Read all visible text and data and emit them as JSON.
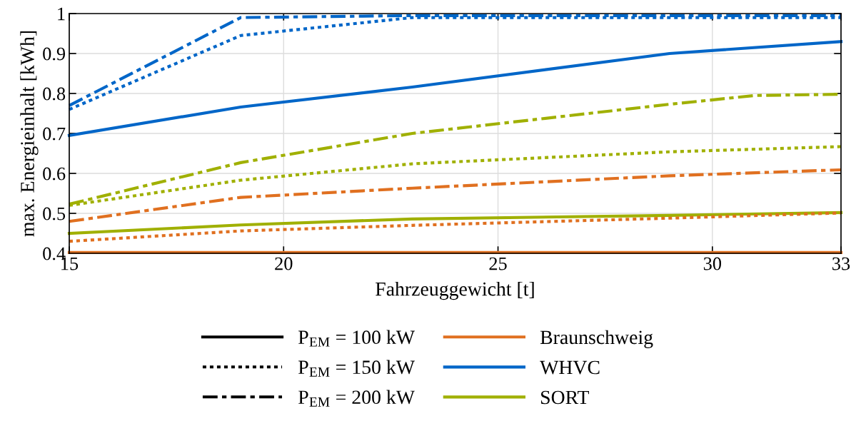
{
  "chart_data": {
    "type": "line",
    "xlabel": "Fahrzeuggewicht [t]",
    "ylabel": "max. Energieinhalt [kWh]",
    "xlim": [
      15,
      33
    ],
    "xticks": [
      15,
      20,
      25,
      30,
      33
    ],
    "ylim": [
      0.4,
      1
    ],
    "yticks": [
      0.4,
      0.5,
      0.6,
      0.7,
      0.8,
      0.9,
      1
    ],
    "grid": true,
    "legend": "bottom",
    "series": [
      {
        "color": "#0066c8",
        "line_style": "solid",
        "x": [
          15,
          19,
          23,
          29,
          33
        ],
        "values": [
          0.695,
          0.766,
          0.816,
          0.9,
          0.93
        ]
      },
      {
        "color": "#0066c8",
        "line_style": "dotted",
        "x": [
          15,
          19,
          23,
          29,
          33
        ],
        "values": [
          0.76,
          0.945,
          0.99,
          0.99,
          0.99
        ]
      },
      {
        "color": "#0066c8",
        "line_style": "dashed",
        "x": [
          15,
          19,
          23,
          29,
          33
        ],
        "values": [
          0.77,
          0.99,
          0.995,
          0.995,
          0.995
        ]
      },
      {
        "color": "#a0b000",
        "line_style": "dashed",
        "x": [
          15,
          19,
          23,
          29,
          31,
          33
        ],
        "values": [
          0.523,
          0.627,
          0.7,
          0.773,
          0.795,
          0.798
        ]
      },
      {
        "color": "#a0b000",
        "line_style": "dotted",
        "x": [
          15,
          19,
          23,
          29,
          33
        ],
        "values": [
          0.52,
          0.583,
          0.624,
          0.654,
          0.667
        ]
      },
      {
        "color": "#e07020",
        "line_style": "dashed",
        "x": [
          15,
          19,
          23,
          29,
          33
        ],
        "values": [
          0.48,
          0.54,
          0.563,
          0.594,
          0.609
        ]
      },
      {
        "color": "#a0b000",
        "line_style": "solid",
        "x": [
          15,
          19,
          23,
          29,
          33
        ],
        "values": [
          0.45,
          0.471,
          0.486,
          0.495,
          0.502
        ]
      },
      {
        "color": "#e07020",
        "line_style": "dotted",
        "x": [
          15,
          19,
          23,
          29,
          33
        ],
        "values": [
          0.43,
          0.456,
          0.47,
          0.488,
          0.501
        ]
      },
      {
        "color": "#e07020",
        "line_style": "solid",
        "x": [
          15,
          19,
          23,
          29,
          33
        ],
        "values": [
          0.402,
          0.402,
          0.402,
          0.402,
          0.402
        ]
      },
      {
        "name": "P$_{EM}$ = 100 kW",
        "color": "#000000",
        "line_style": "solid"
      },
      {
        "name": "P$_{EM}$ = 150 kW",
        "color": "#000000",
        "line_style": "dotted"
      },
      {
        "name": "P$_{EM}$ = 200 kW",
        "color": "#000000",
        "line_style": "dashed"
      },
      {
        "name": "Braunschweig",
        "color": "#e07020",
        "line_style": "solid"
      },
      {
        "name": "WHVC",
        "color": "#0066c8",
        "line_style": "solid"
      },
      {
        "name": "SORT",
        "color": "#a0b000",
        "line_style": "solid"
      }
    ]
  }
}
